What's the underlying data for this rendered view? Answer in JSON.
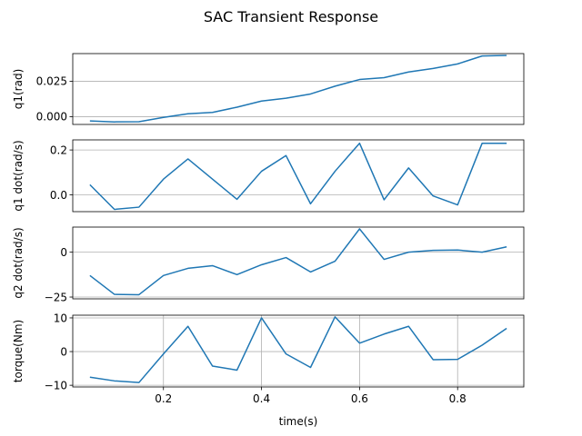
{
  "chart_data": {
    "type": "line",
    "title": "SAC Transient Response",
    "xlabel": "time(s)",
    "x": [
      0.05,
      0.1,
      0.15,
      0.2,
      0.25,
      0.3,
      0.35,
      0.4,
      0.45,
      0.5,
      0.55,
      0.6,
      0.65,
      0.7,
      0.75,
      0.8,
      0.85,
      0.9
    ],
    "xlim": [
      0.015,
      0.935
    ],
    "xticks": [
      0.2,
      0.4,
      0.6,
      0.8
    ],
    "xtick_labels": [
      "0.2",
      "0.4",
      "0.6",
      "0.8"
    ],
    "line_color": "#1f77b4",
    "grid": true,
    "panels": [
      {
        "ylabel": "q1(rad)",
        "ylim": [
          -0.0055,
          0.0445
        ],
        "yticks": [
          0.0,
          0.025
        ],
        "ytick_labels": [
          "0.000",
          "0.025"
        ],
        "values": [
          -0.003,
          -0.0037,
          -0.0036,
          -0.0005,
          0.002,
          0.003,
          0.0067,
          0.011,
          0.013,
          0.016,
          0.0215,
          0.0262,
          0.0275,
          0.0315,
          0.034,
          0.0372,
          0.0428,
          0.0432
        ],
        "show_xticklabels": false
      },
      {
        "ylabel": "q1 dot(rad/s)",
        "ylim": [
          -0.075,
          0.245
        ],
        "yticks": [
          0.0,
          0.2
        ],
        "ytick_labels": [
          "0.0",
          "0.2"
        ],
        "values": [
          0.045,
          -0.065,
          -0.055,
          0.07,
          0.16,
          0.07,
          -0.02,
          0.105,
          0.175,
          -0.04,
          0.105,
          0.23,
          -0.022,
          0.12,
          -0.005,
          -0.045,
          0.23,
          0.23
        ],
        "show_xticklabels": false
      },
      {
        "ylabel": "q2 dot(rad/s)",
        "ylim": [
          -26,
          14
        ],
        "yticks": [
          -25,
          0
        ],
        "ytick_labels": [
          "−25",
          "0"
        ],
        "values": [
          -13,
          -23.5,
          -23.7,
          -13,
          -9,
          -7.5,
          -12.5,
          -7,
          -3,
          -11,
          -5,
          13,
          -4,
          0,
          1,
          1.2,
          0,
          3
        ],
        "show_xticklabels": false
      },
      {
        "ylabel": "torque(Nm)",
        "ylim": [
          -10.5,
          10.8
        ],
        "yticks": [
          -10,
          0,
          10
        ],
        "ytick_labels": [
          "−10",
          "0",
          "10"
        ],
        "values": [
          -7.6,
          -8.7,
          -9.2,
          -0.7,
          7.5,
          -4.3,
          -5.5,
          10,
          -0.7,
          -4.7,
          10.3,
          2.5,
          5.2,
          7.5,
          -2.4,
          -2.3,
          1.9,
          6.9
        ],
        "show_xticklabels": true
      }
    ]
  }
}
